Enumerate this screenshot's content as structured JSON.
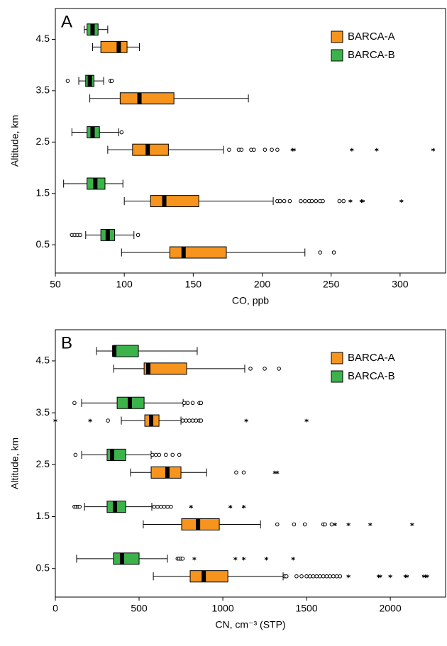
{
  "chart_data": [
    {
      "type": "boxplot",
      "panel_label": "A",
      "x_label": "CO, ppb",
      "y_label": "Altitude, km",
      "categories": [
        0.5,
        1.5,
        2.5,
        3.5,
        4.5
      ],
      "xlim": [
        50,
        333
      ],
      "xticks": [
        50,
        100,
        150,
        200,
        250,
        300
      ],
      "ylim": [
        -0.05,
        5.1
      ],
      "yticks": [
        0.5,
        1.5,
        2.5,
        3.5,
        4.5
      ],
      "legend": "upper right",
      "grid": false,
      "series": [
        {
          "name": "BARCA-A",
          "color": "#f7941d",
          "boxes": [
            {
              "whisker_low": 98,
              "q1": 133,
              "median": 143,
              "q3": 174,
              "whisker_high": 231,
              "outliers": [
                242,
                252
              ],
              "extremes": []
            },
            {
              "whisker_low": 100,
              "q1": 119,
              "median": 129,
              "q3": 154,
              "whisker_high": 208,
              "outliers": [
                211,
                213,
                216,
                220,
                228,
                231,
                234,
                236,
                239,
                242,
                244,
                256,
                259
              ],
              "extremes": [
                264,
                272,
                273,
                301
              ]
            },
            {
              "whisker_low": 88,
              "q1": 106,
              "median": 117,
              "q3": 132,
              "whisker_high": 172,
              "outliers": [
                176,
                183,
                185,
                192,
                194,
                202,
                207,
                211
              ],
              "extremes": [
                222,
                223,
                265,
                283,
                324
              ]
            },
            {
              "whisker_low": 75,
              "q1": 97,
              "median": 111,
              "q3": 136,
              "whisker_high": 190,
              "outliers": [],
              "extremes": []
            },
            {
              "whisker_low": 77,
              "q1": 83,
              "median": 96,
              "q3": 102,
              "whisker_high": 111,
              "outliers": [],
              "extremes": []
            }
          ]
        },
        {
          "name": "BARCA-B",
          "color": "#3cb34a",
          "boxes": [
            {
              "whisker_low": 72,
              "q1": 83,
              "median": 88,
              "q3": 93,
              "whisker_high": 107,
              "outliers": [
                62,
                64,
                66,
                68,
                110
              ],
              "extremes": []
            },
            {
              "whisker_low": 56,
              "q1": 73,
              "median": 79,
              "q3": 86,
              "whisker_high": 99,
              "outliers": [],
              "extremes": []
            },
            {
              "whisker_low": 62,
              "q1": 73,
              "median": 77,
              "q3": 82,
              "whisker_high": 96,
              "outliers": [
                98
              ],
              "extremes": []
            },
            {
              "whisker_low": 67,
              "q1": 72,
              "median": 75,
              "q3": 78,
              "whisker_high": 85,
              "outliers": [
                59,
                90,
                91
              ],
              "extremes": []
            },
            {
              "whisker_low": 71,
              "q1": 73,
              "median": 77,
              "q3": 81,
              "whisker_high": 88,
              "outliers": [],
              "extremes": []
            }
          ]
        }
      ]
    },
    {
      "type": "boxplot",
      "panel_label": "B",
      "x_label": "CN, cm⁻³ (STP)",
      "y_label": "Altitude, km",
      "categories": [
        0.5,
        1.5,
        2.5,
        3.5,
        4.5
      ],
      "xlim": [
        0,
        2330
      ],
      "xticks": [
        0,
        500,
        1000,
        1500,
        2000
      ],
      "ylim": [
        -0.05,
        5.1
      ],
      "yticks": [
        0.5,
        1.5,
        2.5,
        3.5,
        4.5
      ],
      "legend": "upper right",
      "grid": false,
      "series": [
        {
          "name": "BARCA-A",
          "color": "#f7941d",
          "boxes": [
            {
              "whisker_low": 585,
              "q1": 805,
              "median": 886,
              "q3": 1030,
              "whisker_high": 1360,
              "outliers": [
                1370,
                1380,
                1440,
                1470,
                1500,
                1520,
                1540,
                1560,
                1580,
                1600,
                1620,
                1640,
                1660,
                1680,
                1700
              ],
              "extremes": [
                1750,
                1930,
                1940,
                2000,
                2090,
                2100,
                2200,
                2210,
                2220
              ]
            },
            {
              "whisker_low": 525,
              "q1": 754,
              "median": 852,
              "q3": 979,
              "whisker_high": 1225,
              "outliers": [
                1325,
                1425,
                1490,
                1600,
                1610,
                1650
              ],
              "extremes": [
                1670,
                1750,
                1880,
                2130
              ]
            },
            {
              "whisker_low": 449,
              "q1": 572,
              "median": 669,
              "q3": 750,
              "whisker_high": 903,
              "outliers": [
                1080,
                1125
              ],
              "extremes": [
                1310,
                1325
              ]
            },
            {
              "whisker_low": 394,
              "q1": 534,
              "median": 572,
              "q3": 619,
              "whisker_high": 750,
              "outliers": [
                314,
                760,
                780,
                800,
                820,
                840,
                860,
                870
              ],
              "extremes": [
                0,
                208,
                1140,
                1500
              ]
            },
            {
              "whisker_low": 348,
              "q1": 530,
              "median": 555,
              "q3": 784,
              "whisker_high": 1131,
              "outliers": [
                1165,
                1250,
                1335
              ],
              "extremes": []
            }
          ]
        },
        {
          "name": "BARCA-B",
          "color": "#3cb34a",
          "boxes": [
            {
              "whisker_low": 127,
              "q1": 347,
              "median": 398,
              "q3": 500,
              "whisker_high": 669,
              "outliers": [
                730,
                740,
                750,
                760
              ],
              "extremes": [
                830,
                1075,
                1125,
                1260,
                1420
              ]
            },
            {
              "whisker_low": 174,
              "q1": 309,
              "median": 356,
              "q3": 420,
              "whisker_high": 576,
              "outliers": [
                114,
                125,
                135,
                145,
                590,
                610,
                630,
                650,
                670,
                690
              ],
              "extremes": [
                810,
                1045,
                1125
              ]
            },
            {
              "whisker_low": 157,
              "q1": 309,
              "median": 339,
              "q3": 420,
              "whisker_high": 572,
              "outliers": [
                120,
                580,
                600,
                620,
                660,
                700,
                740
              ],
              "extremes": []
            },
            {
              "whisker_low": 157,
              "q1": 369,
              "median": 445,
              "q3": 530,
              "whisker_high": 763,
              "outliers": [
                114,
                770,
                790,
                820,
                860,
                870
              ],
              "extremes": []
            },
            {
              "whisker_low": 246,
              "q1": 348,
              "median": 352,
              "q3": 496,
              "whisker_high": 847,
              "outliers": [],
              "extremes": []
            }
          ]
        }
      ]
    }
  ]
}
